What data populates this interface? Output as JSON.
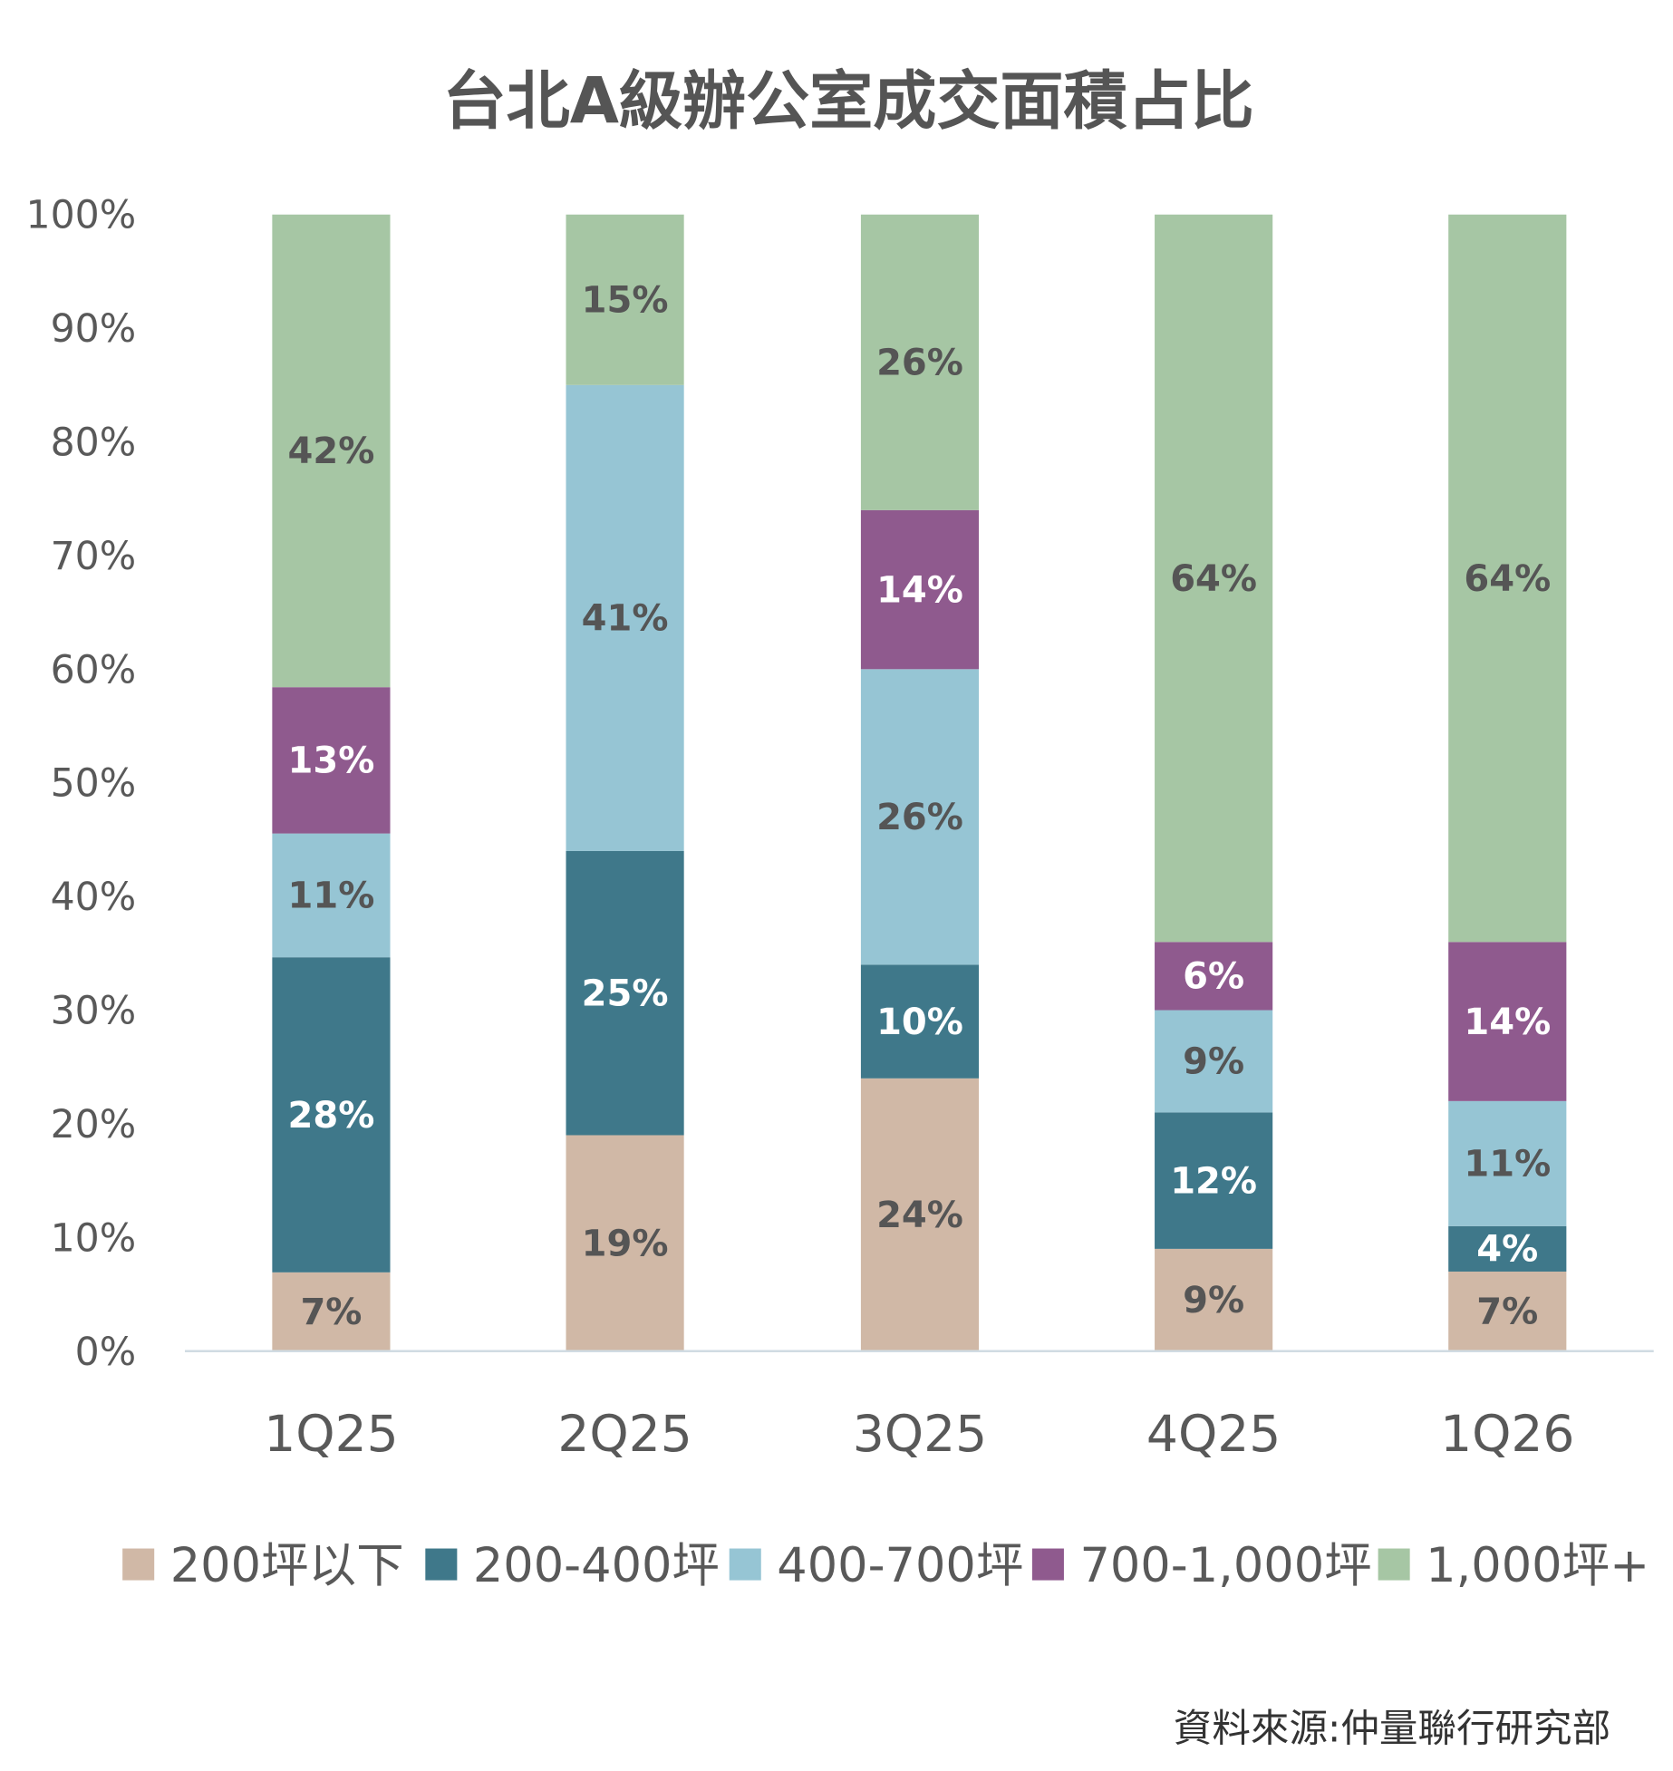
{
  "chart_data": {
    "type": "bar",
    "stacked": true,
    "percent_stacked": true,
    "title": "台北A級辦公室成交面積占比",
    "xlabel": "",
    "ylabel": "",
    "ylim": [
      0,
      100
    ],
    "yticks": [
      "0%",
      "10%",
      "20%",
      "30%",
      "40%",
      "50%",
      "60%",
      "70%",
      "80%",
      "90%",
      "100%"
    ],
    "grid": false,
    "legend_position": "bottom",
    "categories": [
      "1Q25",
      "2Q25",
      "3Q25",
      "4Q25",
      "1Q26"
    ],
    "series": [
      {
        "name": "200坪以下",
        "color": "#d0b8a6",
        "label_color": "#555555",
        "values": [
          7,
          19,
          24,
          9,
          7
        ]
      },
      {
        "name": "200-400坪",
        "color": "#3f788a",
        "label_color": "#ffffff",
        "values": [
          28,
          25,
          10,
          12,
          4
        ]
      },
      {
        "name": "400-700坪",
        "color": "#96c5d4",
        "label_color": "#555555",
        "values": [
          11,
          41,
          26,
          9,
          11
        ]
      },
      {
        "name": "700-1,000坪",
        "color": "#8f5a8e",
        "label_color": "#ffffff",
        "values": [
          13,
          0,
          14,
          6,
          14
        ]
      },
      {
        "name": "1,000坪+",
        "color": "#a6c6a4",
        "label_color": "#555555",
        "values": [
          42,
          15,
          26,
          64,
          64
        ]
      }
    ],
    "source": "資料來源:仲量聯行研究部"
  }
}
